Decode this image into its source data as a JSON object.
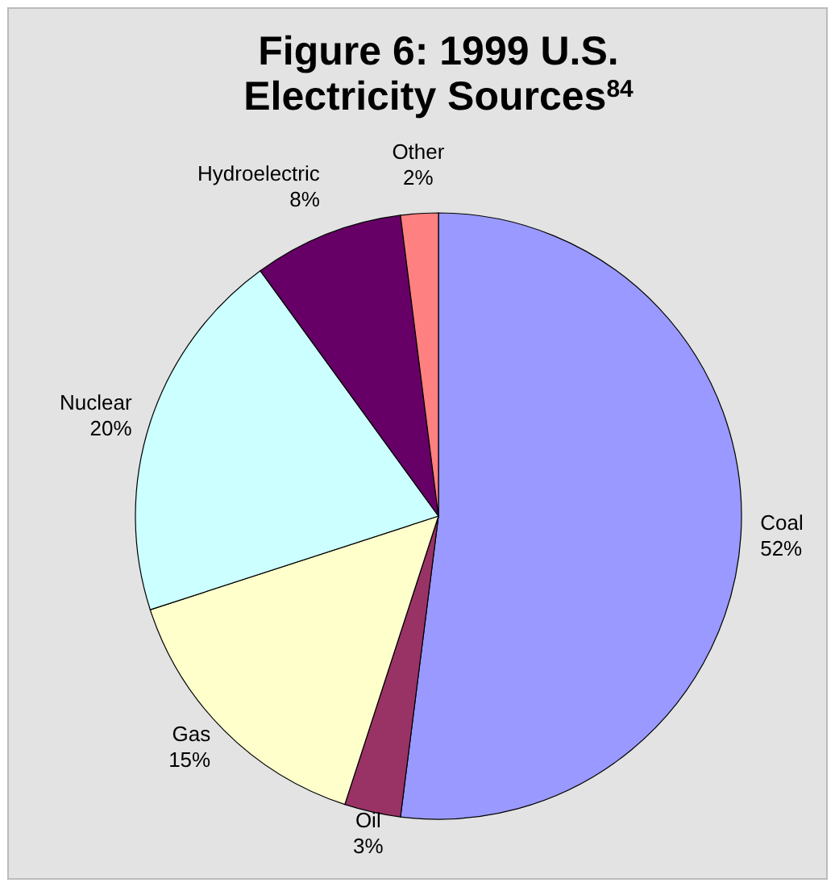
{
  "chart_data": {
    "type": "pie",
    "title": "Figure 6: 1999 U.S. Electricity Sources$^{84}$",
    "categories": [
      "Coal",
      "Oil",
      "Gas",
      "Nuclear",
      "Hydroelectric",
      "Other"
    ],
    "values": [
      52,
      3,
      15,
      20,
      8,
      2
    ],
    "colors": [
      "#9999ff",
      "#993366",
      "#ffffcc",
      "#ccffff",
      "#660066",
      "#ff8080"
    ],
    "value_labels": [
      "52%",
      "3%",
      "15%",
      "20%",
      "8%",
      "2%"
    ]
  }
}
